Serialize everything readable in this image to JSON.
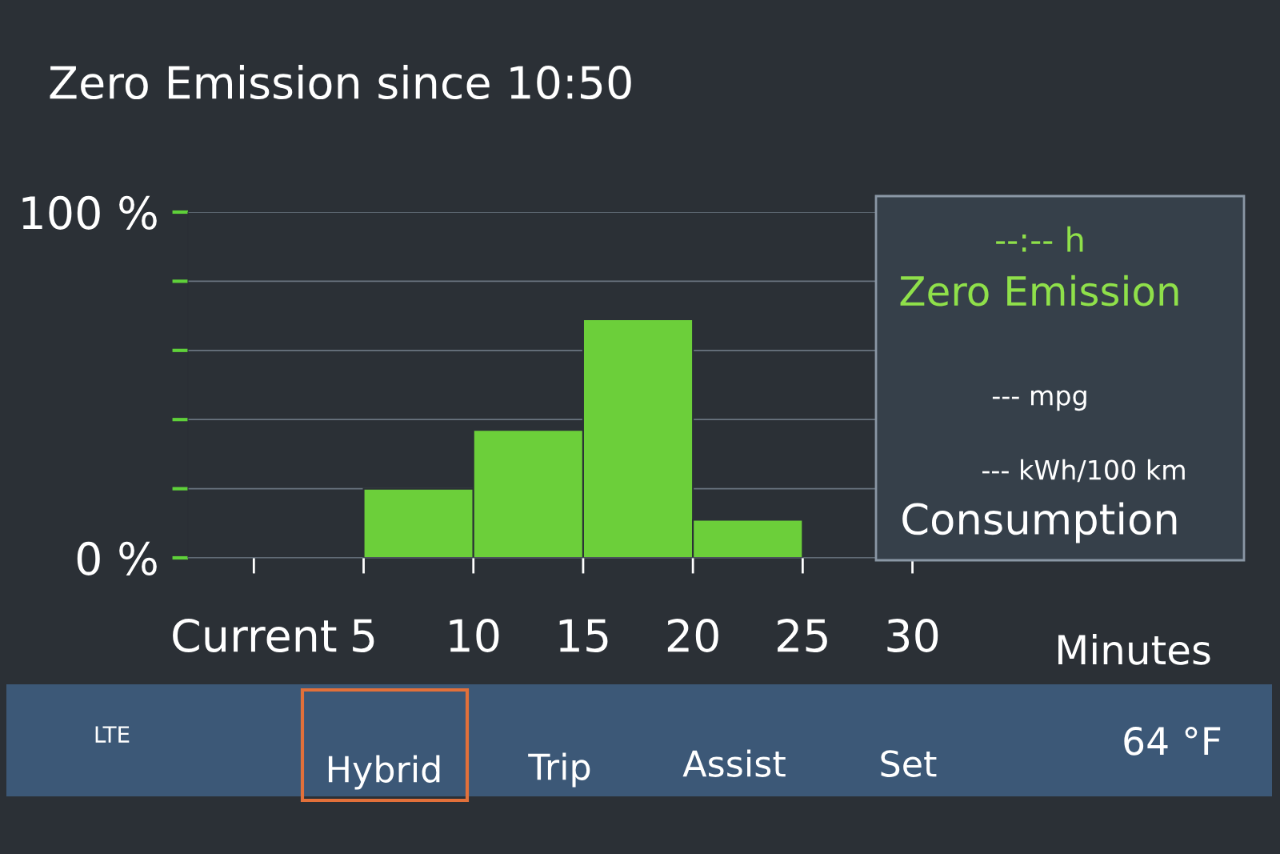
{
  "chart_data": {
    "type": "histogram",
    "title": "Zero Emission since 10:50",
    "xlabel": "Minutes",
    "bins": [
      5,
      10,
      15,
      20,
      25
    ],
    "values": [
      20,
      37,
      69,
      11
    ],
    "color": "#6ccf3a",
    "xlim": [
      -3,
      31
    ],
    "xticks": [
      {
        "value": 0,
        "label": "Current"
      },
      5,
      10,
      15,
      20,
      25,
      30
    ],
    "ylim": [
      0,
      100
    ],
    "yticks": [
      {
        "value": 0,
        "label": "0 %"
      },
      {
        "value": 20,
        "label": null
      },
      {
        "value": 40,
        "label": null
      },
      {
        "value": 60,
        "label": null
      },
      {
        "value": 80,
        "label": null
      },
      {
        "value": 100,
        "label": "100 %"
      }
    ],
    "grid": "y",
    "annotations": [
      "--:-- h",
      "Zero Emission",
      "--- mpg",
      "--- kWh/100 km",
      "Consumption",
      "LTE",
      "Hybrid",
      "Trip",
      "Assist",
      "Set",
      "64 °F"
    ]
  }
}
